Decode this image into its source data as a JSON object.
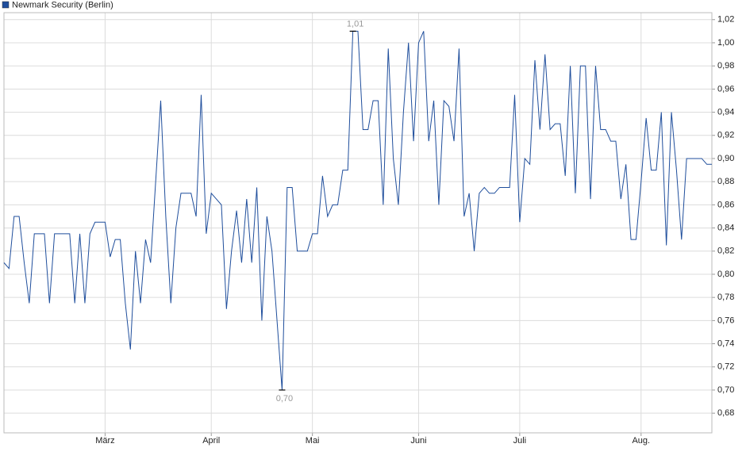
{
  "chart_data": {
    "type": "line",
    "categories": [
      null,
      null,
      null,
      null,
      null,
      null,
      null,
      null,
      null,
      null,
      null,
      null,
      null,
      null,
      null,
      null,
      null,
      null,
      null,
      null,
      "März",
      null,
      null,
      null,
      null,
      null,
      null,
      null,
      null,
      null,
      null,
      null,
      null,
      null,
      null,
      null,
      null,
      null,
      null,
      null,
      null,
      "April",
      null,
      null,
      null,
      null,
      null,
      null,
      null,
      null,
      null,
      null,
      null,
      null,
      null,
      null,
      null,
      null,
      null,
      null,
      null,
      "Mai",
      null,
      null,
      null,
      null,
      null,
      null,
      null,
      null,
      null,
      null,
      null,
      null,
      null,
      null,
      null,
      null,
      null,
      null,
      null,
      null,
      "Juni",
      null,
      null,
      null,
      null,
      null,
      null,
      null,
      null,
      null,
      null,
      null,
      null,
      null,
      null,
      null,
      null,
      null,
      null,
      null,
      "Juli",
      null,
      null,
      null,
      null,
      null,
      null,
      null,
      null,
      null,
      null,
      null,
      null,
      null,
      null,
      null,
      null,
      null,
      null,
      null,
      null,
      null,
      null,
      null,
      "Aug.",
      null,
      null,
      null,
      null,
      null,
      null,
      null,
      null,
      null,
      null,
      null,
      null,
      null,
      null
    ],
    "series": [
      {
        "name": "Newmark Security (Berlin)",
        "color": "#1f4e9c",
        "values": [
          0.81,
          0.805,
          0.85,
          0.85,
          0.81,
          0.775,
          0.835,
          0.835,
          0.835,
          0.775,
          0.835,
          0.835,
          0.835,
          0.835,
          0.775,
          0.835,
          0.775,
          0.835,
          0.845,
          0.845,
          0.845,
          0.815,
          0.83,
          0.83,
          0.775,
          0.735,
          0.82,
          0.775,
          0.83,
          0.81,
          0.88,
          0.95,
          0.85,
          0.775,
          0.84,
          0.87,
          0.87,
          0.87,
          0.85,
          0.955,
          0.835,
          0.87,
          0.865,
          0.86,
          0.77,
          0.82,
          0.855,
          0.81,
          0.865,
          0.81,
          0.875,
          0.76,
          0.85,
          0.82,
          0.76,
          0.7,
          0.875,
          0.875,
          0.82,
          0.82,
          0.82,
          0.835,
          0.835,
          0.885,
          0.85,
          0.86,
          0.86,
          0.89,
          0.89,
          1.01,
          1.01,
          0.925,
          0.925,
          0.95,
          0.95,
          0.86,
          0.995,
          0.9,
          0.86,
          0.94,
          1.0,
          0.915,
          1.0,
          1.01,
          0.915,
          0.95,
          0.86,
          0.95,
          0.945,
          0.915,
          0.995,
          0.85,
          0.87,
          0.82,
          0.87,
          0.875,
          0.87,
          0.87,
          0.875,
          0.875,
          0.875,
          0.955,
          0.845,
          0.9,
          0.895,
          0.985,
          0.925,
          0.99,
          0.925,
          0.93,
          0.93,
          0.885,
          0.98,
          0.87,
          0.98,
          0.98,
          0.865,
          0.98,
          0.925,
          0.925,
          0.915,
          0.915,
          0.865,
          0.895,
          0.83,
          0.83,
          0.88,
          0.935,
          0.89,
          0.89,
          0.94,
          0.825,
          0.94,
          0.89,
          0.83,
          0.9,
          0.9,
          0.9,
          0.9,
          0.895,
          0.895
        ],
        "value_labels": [
          null,
          null,
          null,
          null,
          null,
          null,
          null,
          null,
          null,
          null,
          null,
          null,
          null,
          null,
          null,
          null,
          null,
          null,
          null,
          null,
          null,
          null,
          null,
          null,
          null,
          null,
          null,
          null,
          null,
          null,
          null,
          null,
          null,
          null,
          null,
          null,
          null,
          null,
          null,
          null,
          null,
          null,
          null,
          null,
          null,
          null,
          null,
          null,
          null,
          null,
          null,
          null,
          null,
          null,
          null,
          "0,70",
          null,
          null,
          null,
          null,
          null,
          null,
          null,
          null,
          null,
          null,
          null,
          null,
          null,
          "1,01",
          null,
          null,
          null,
          null,
          null,
          null,
          null,
          null,
          null,
          null,
          null,
          null,
          null,
          null,
          null,
          null,
          null,
          null,
          null,
          null,
          null,
          null,
          null,
          null,
          null,
          null,
          null,
          null,
          null,
          null,
          null,
          null,
          null,
          null,
          null,
          null,
          null,
          null,
          null,
          null,
          null,
          null,
          null,
          null,
          null,
          null,
          null,
          null,
          null,
          null,
          null,
          null,
          null,
          null,
          null,
          null,
          null,
          null,
          null,
          null,
          null,
          null,
          null,
          null,
          null,
          null,
          null,
          null,
          null,
          null,
          null
        ]
      }
    ],
    "ylim": [
      0.663,
      1.026
    ],
    "yticks": [
      {
        "value": 0.68,
        "label": "0,68"
      },
      {
        "value": 0.7,
        "label": "0,70"
      },
      {
        "value": 0.72,
        "label": "0,72"
      },
      {
        "value": 0.74,
        "label": "0,74"
      },
      {
        "value": 0.76,
        "label": "0,76"
      },
      {
        "value": 0.78,
        "label": "0,78"
      },
      {
        "value": 0.8,
        "label": "0,80"
      },
      {
        "value": 0.82,
        "label": "0,82"
      },
      {
        "value": 0.84,
        "label": "0,84"
      },
      {
        "value": 0.86,
        "label": "0,86"
      },
      {
        "value": 0.88,
        "label": "0,88"
      },
      {
        "value": 0.9,
        "label": "0,90"
      },
      {
        "value": 0.92,
        "label": "0,92"
      },
      {
        "value": 0.94,
        "label": "0,94"
      },
      {
        "value": 0.96,
        "label": "0,96"
      },
      {
        "value": 0.98,
        "label": "0,98"
      },
      {
        "value": 1.0,
        "label": "1,00"
      },
      {
        "value": 1.02,
        "label": "1,02"
      }
    ],
    "grid": true,
    "legend": "top-left"
  }
}
